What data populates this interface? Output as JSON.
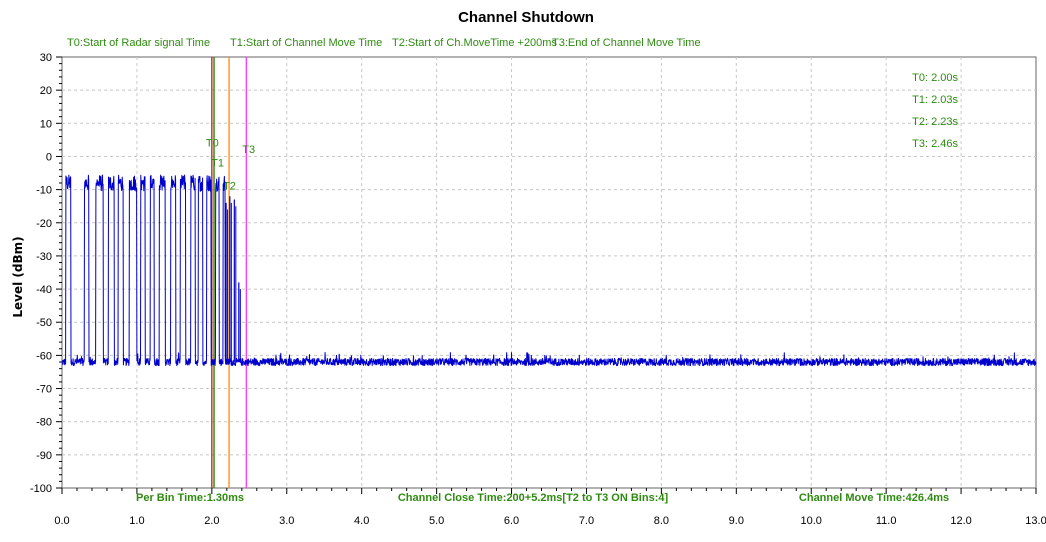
{
  "chart_data": {
    "type": "line",
    "title": "Channel Shutdown",
    "ylabel": "Level (dBm)",
    "xlabel": "",
    "xlim": [
      0,
      13
    ],
    "ylim": [
      -100,
      30
    ],
    "x_ticks": [
      "0.0",
      "1.0",
      "2.0",
      "3.0",
      "4.0",
      "5.0",
      "6.0",
      "7.0",
      "8.0",
      "9.0",
      "10.0",
      "11.0",
      "12.0",
      "13.0"
    ],
    "y_ticks": [
      "30",
      "20",
      "10",
      "0",
      "-10",
      "-20",
      "-30",
      "-40",
      "-50",
      "-60",
      "-70",
      "-80",
      "-90",
      "-100"
    ],
    "grid": true,
    "series_color": "#0000cc",
    "series": [
      {
        "noise_floor_dBm": -62,
        "pulse_peak_dBm": -7,
        "pulses": [
          [
            0.05,
            0.12
          ],
          [
            0.3,
            0.36
          ],
          [
            0.45,
            0.55
          ],
          [
            0.62,
            0.7
          ],
          [
            0.75,
            0.82
          ],
          [
            0.9,
            1.0
          ],
          [
            1.05,
            1.11
          ],
          [
            1.18,
            1.23
          ],
          [
            1.3,
            1.38
          ],
          [
            1.45,
            1.52
          ],
          [
            1.58,
            1.65
          ],
          [
            1.72,
            1.78
          ],
          [
            1.82,
            1.88
          ],
          [
            1.93,
            1.99
          ],
          [
            2.05,
            2.1
          ],
          [
            2.15,
            2.18
          ]
        ],
        "late_bursts": [
          {
            "x": 2.19,
            "y": -14
          },
          {
            "x": 2.24,
            "y": -12
          },
          {
            "x": 2.3,
            "y": -13
          },
          {
            "x": 2.36,
            "y": -38
          }
        ]
      }
    ],
    "markers": [
      {
        "label": "T0",
        "x": 2.0,
        "color": "#b22222"
      },
      {
        "label": "T1",
        "x": 2.03,
        "color": "#2e8b10"
      },
      {
        "label": "T2",
        "x": 2.23,
        "color": "#ff8c00"
      },
      {
        "label": "T3",
        "x": 2.46,
        "color": "#ff33ff"
      }
    ],
    "legend_top": [
      "T0:Start of Radar signal Time",
      "T1:Start of Channel Move Time",
      "T2:Start of Ch.MoveTime +200ms",
      "T3:End of Channel Move Time"
    ],
    "readouts": [
      "T0: 2.00s",
      "T1: 2.03s",
      "T2: 2.23s",
      "T3: 2.46s"
    ],
    "footer": [
      "Per Bin Time:1.30ms",
      "Channel Close Time:200+5.2ms[T2 to T3 ON Bins:4]",
      "Channel Move Time:426.4ms"
    ],
    "annotation_color": "#2e8b10"
  }
}
